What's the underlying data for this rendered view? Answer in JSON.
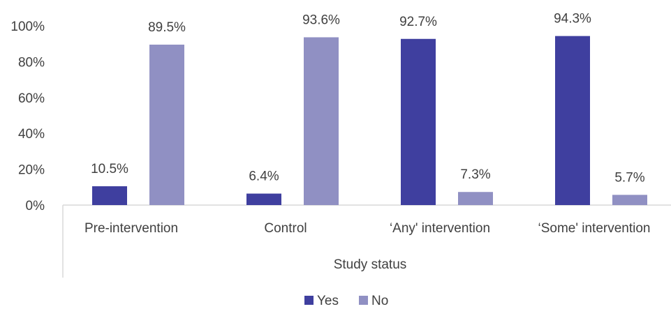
{
  "chart_data": {
    "type": "bar",
    "title": "",
    "xlabel": "Study status",
    "ylabel": "",
    "categories": [
      "Pre-intervention",
      "Control",
      "‘Any' intervention",
      "‘Some' intervention"
    ],
    "series": [
      {
        "name": "Yes",
        "color": "#3f3f9f",
        "values": [
          10.5,
          6.4,
          92.7,
          94.3
        ]
      },
      {
        "name": "No",
        "color": "#9090c3",
        "values": [
          89.5,
          93.6,
          7.3,
          5.7
        ]
      }
    ],
    "value_labels": [
      [
        "10.5%",
        "6.4%",
        "92.7%",
        "94.3%"
      ],
      [
        "89.5%",
        "93.6%",
        "7.3%",
        "5.7%"
      ]
    ],
    "ylim": [
      0,
      100
    ],
    "yticks": [
      0,
      20,
      40,
      60,
      80,
      100
    ],
    "ytick_labels": [
      "0%",
      "20%",
      "40%",
      "60%",
      "80%",
      "100%"
    ],
    "grid": false,
    "legend_position": "bottom"
  }
}
